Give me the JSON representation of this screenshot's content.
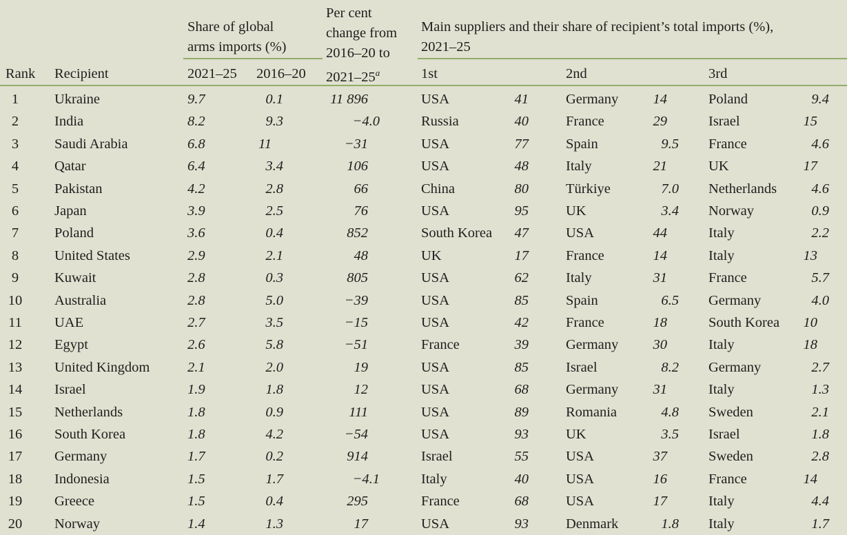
{
  "header": {
    "rank": "Rank",
    "recipient": "Recipient",
    "share_group": [
      "Share of global",
      "arms imports (%)"
    ],
    "share_2021": "2021–25",
    "share_2016": "2016–20",
    "change": [
      "Per cent",
      "change from",
      "2016–20 to",
      "2021–25"
    ],
    "change_note": "a",
    "suppliers_group": [
      "Main suppliers and their share of recipient’s total imports (%),",
      "2021–25"
    ],
    "first": "1st",
    "second": "2nd",
    "third": "3rd"
  },
  "rows": [
    [
      "1",
      "Ukraine",
      "9.7",
      "0.1",
      "11 896",
      "USA",
      "41",
      "Germany",
      "14",
      "Poland",
      "9.4"
    ],
    [
      "2",
      "India",
      "8.2",
      "9.3",
      "−4.0",
      "Russia",
      "40",
      "France",
      "29",
      "Israel",
      "15"
    ],
    [
      "3",
      "Saudi Arabia",
      "6.8",
      "11",
      "−31",
      "USA",
      "77",
      "Spain",
      "9.5",
      "France",
      "4.6"
    ],
    [
      "4",
      "Qatar",
      "6.4",
      "3.4",
      "106",
      "USA",
      "48",
      "Italy",
      "21",
      "UK",
      "17"
    ],
    [
      "5",
      "Pakistan",
      "4.2",
      "2.8",
      "66",
      "China",
      "80",
      "Türkiye",
      "7.0",
      "Netherlands",
      "4.6"
    ],
    [
      "6",
      "Japan",
      "3.9",
      "2.5",
      "76",
      "USA",
      "95",
      "UK",
      "3.4",
      "Norway",
      "0.9"
    ],
    [
      "7",
      "Poland",
      "3.6",
      "0.4",
      "852",
      "South Korea",
      "47",
      "USA",
      "44",
      "Italy",
      "2.2"
    ],
    [
      "8",
      "United States",
      "2.9",
      "2.1",
      "48",
      "UK",
      "17",
      "France",
      "14",
      "Italy",
      "13"
    ],
    [
      "9",
      "Kuwait",
      "2.8",
      "0.3",
      "805",
      "USA",
      "62",
      "Italy",
      "31",
      "France",
      "5.7"
    ],
    [
      "10",
      "Australia",
      "2.8",
      "5.0",
      "−39",
      "USA",
      "85",
      "Spain",
      "6.5",
      "Germany",
      "4.0"
    ],
    [
      "11",
      "UAE",
      "2.7",
      "3.5",
      "−15",
      "USA",
      "42",
      "France",
      "18",
      "South Korea",
      "10"
    ],
    [
      "12",
      "Egypt",
      "2.6",
      "5.8",
      "−51",
      "France",
      "39",
      "Germany",
      "30",
      "Italy",
      "18"
    ],
    [
      "13",
      "United Kingdom",
      "2.1",
      "2.0",
      "19",
      "USA",
      "85",
      "Israel",
      "8.2",
      "Germany",
      "2.7"
    ],
    [
      "14",
      "Israel",
      "1.9",
      "1.8",
      "12",
      "USA",
      "68",
      "Germany",
      "31",
      "Italy",
      "1.3"
    ],
    [
      "15",
      "Netherlands",
      "1.8",
      "0.9",
      "111",
      "USA",
      "89",
      "Romania",
      "4.8",
      "Sweden",
      "2.1"
    ],
    [
      "16",
      "South Korea",
      "1.8",
      "4.2",
      "−54",
      "USA",
      "93",
      "UK",
      "3.5",
      "Israel",
      "1.8"
    ],
    [
      "17",
      "Germany",
      "1.7",
      "0.2",
      "914",
      "Israel",
      "55",
      "USA",
      "37",
      "Sweden",
      "2.8"
    ],
    [
      "18",
      "Indonesia",
      "1.5",
      "1.7",
      "−4.1",
      "Italy",
      "40",
      "USA",
      "16",
      "France",
      "14"
    ],
    [
      "19",
      "Greece",
      "1.5",
      "0.4",
      "295",
      "France",
      "68",
      "USA",
      "17",
      "Italy",
      "4.4"
    ],
    [
      "20",
      "Norway",
      "1.4",
      "1.3",
      "17",
      "USA",
      "93",
      "Denmark",
      "1.8",
      "Italy",
      "1.7"
    ]
  ]
}
